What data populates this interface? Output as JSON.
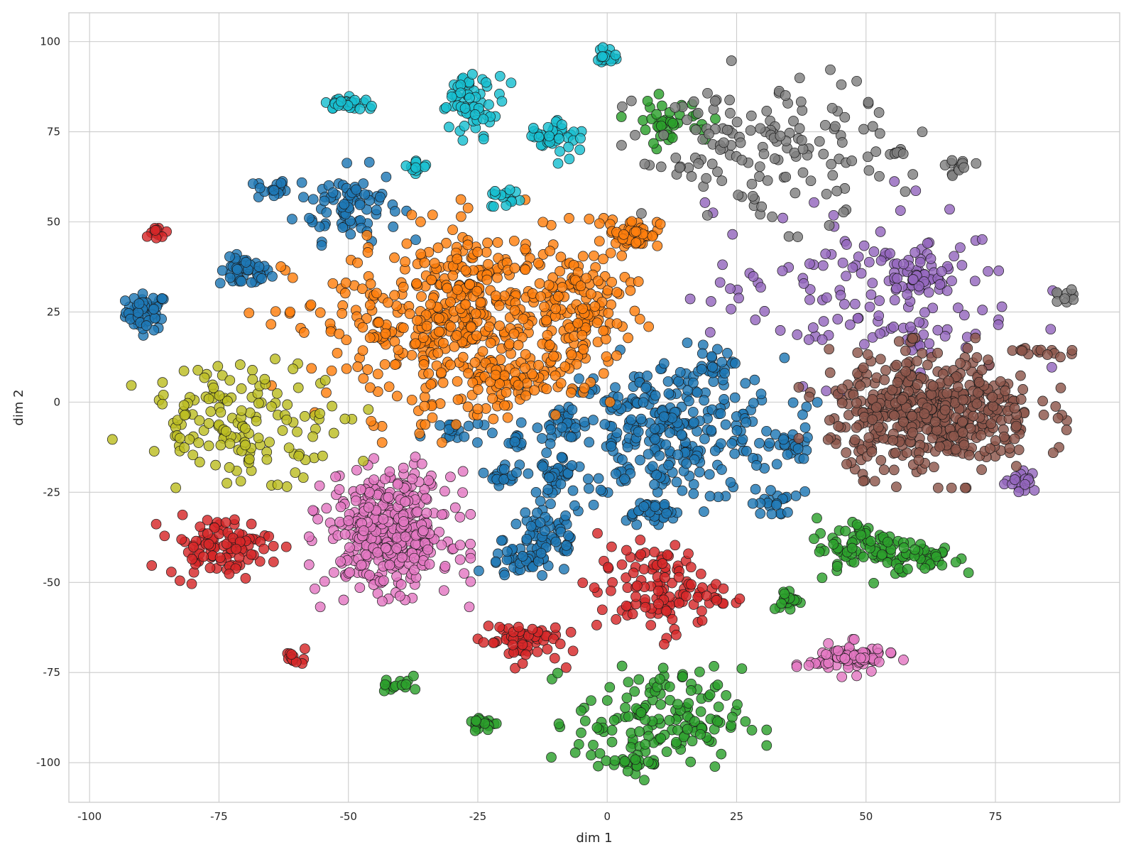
{
  "chart_data": {
    "type": "scatter",
    "title": "",
    "xlabel": "dim 1",
    "ylabel": "dim 2",
    "xlim": [
      -104,
      99
    ],
    "ylim": [
      -111,
      108
    ],
    "xticks": [
      -100,
      -75,
      -50,
      -25,
      0,
      25,
      50,
      75
    ],
    "xtick_labels": [
      "-100",
      "-75",
      "-50",
      "-25",
      "0",
      "25",
      "50",
      "75"
    ],
    "yticks": [
      -100,
      -75,
      -50,
      -25,
      0,
      25,
      50,
      75,
      100
    ],
    "ytick_labels": [
      "-100",
      "-75",
      "-50",
      "-25",
      "0",
      "25",
      "50",
      "75",
      "100"
    ],
    "grid": true,
    "legend": "none",
    "colors": {
      "blue": "#1f77b4",
      "orange": "#ff7f0e",
      "green": "#2ca02c",
      "red": "#d62728",
      "purple": "#9467bd",
      "brown": "#8c564b",
      "pink": "#e377c2",
      "gray": "#7f7f7f",
      "olive": "#bcbd22",
      "cyan": "#17becf"
    },
    "clusters": [
      {
        "color": "blue",
        "x": -89,
        "y": 25,
        "sx": 2.0,
        "sy": 2.5,
        "n": 60
      },
      {
        "color": "blue",
        "x": -70,
        "y": 36,
        "sx": 2.5,
        "sy": 2.0,
        "n": 50
      },
      {
        "color": "blue",
        "x": -65,
        "y": 59,
        "sx": 1.5,
        "sy": 1.5,
        "n": 20
      },
      {
        "color": "blue",
        "x": -50,
        "y": 55,
        "sx": 5.0,
        "sy": 5.0,
        "n": 80
      },
      {
        "color": "blue",
        "x": -30,
        "y": -8,
        "sx": 3.0,
        "sy": 2.0,
        "n": 20
      },
      {
        "color": "blue",
        "x": -20,
        "y": -20,
        "sx": 1.5,
        "sy": 1.5,
        "n": 20
      },
      {
        "color": "blue",
        "x": -17,
        "y": -11,
        "sx": 1.0,
        "sy": 1.0,
        "n": 10
      },
      {
        "color": "blue",
        "x": -10,
        "y": -20,
        "sx": 1.5,
        "sy": 2.0,
        "n": 30
      },
      {
        "color": "blue",
        "x": -8,
        "y": -6,
        "sx": 2.0,
        "sy": 2.0,
        "n": 30
      },
      {
        "color": "blue",
        "x": -12,
        "y": -38,
        "sx": 4.0,
        "sy": 5.0,
        "n": 70
      },
      {
        "color": "blue",
        "x": -17,
        "y": -45,
        "sx": 3.0,
        "sy": 2.0,
        "n": 30
      },
      {
        "color": "blue",
        "x": 12,
        "y": -8,
        "sx": 11.0,
        "sy": 10.0,
        "n": 300
      },
      {
        "color": "blue",
        "x": 8,
        "y": -30,
        "sx": 3.0,
        "sy": 1.5,
        "n": 30
      },
      {
        "color": "blue",
        "x": 20,
        "y": 10,
        "sx": 2.0,
        "sy": 2.0,
        "n": 20
      },
      {
        "color": "blue",
        "x": 35,
        "y": -12,
        "sx": 2.0,
        "sy": 2.0,
        "n": 20
      },
      {
        "color": "blue",
        "x": 32,
        "y": -28,
        "sx": 2.0,
        "sy": 2.0,
        "n": 20
      },
      {
        "color": "orange",
        "x": -38,
        "y": 20,
        "sx": 12.0,
        "sy": 12.0,
        "n": 200
      },
      {
        "color": "orange",
        "x": -25,
        "y": 25,
        "sx": 8.0,
        "sy": 12.0,
        "n": 250
      },
      {
        "color": "orange",
        "x": -5,
        "y": 25,
        "sx": 5.0,
        "sy": 10.0,
        "n": 150
      },
      {
        "color": "orange",
        "x": 5,
        "y": 47,
        "sx": 2.5,
        "sy": 2.0,
        "n": 50
      },
      {
        "color": "orange",
        "x": -20,
        "y": 5,
        "sx": 6.0,
        "sy": 4.0,
        "n": 60
      },
      {
        "color": "green",
        "x": 10,
        "y": -88,
        "sx": 8.0,
        "sy": 7.0,
        "n": 150
      },
      {
        "color": "green",
        "x": 5,
        "y": -100,
        "sx": 2.0,
        "sy": 1.0,
        "n": 20
      },
      {
        "color": "green",
        "x": 50,
        "y": -40,
        "sx": 5.0,
        "sy": 4.0,
        "n": 80
      },
      {
        "color": "green",
        "x": 62,
        "y": -43,
        "sx": 3.0,
        "sy": 2.0,
        "n": 40
      },
      {
        "color": "green",
        "x": 35,
        "y": -55,
        "sx": 1.5,
        "sy": 1.5,
        "n": 20
      },
      {
        "color": "green",
        "x": -24,
        "y": -89,
        "sx": 1.5,
        "sy": 1.0,
        "n": 20
      },
      {
        "color": "green",
        "x": -41,
        "y": -78,
        "sx": 1.5,
        "sy": 2.0,
        "n": 15
      },
      {
        "color": "green",
        "x": 12,
        "y": 78,
        "sx": 4.0,
        "sy": 3.0,
        "n": 40
      },
      {
        "color": "red",
        "x": -75,
        "y": -40,
        "sx": 5.0,
        "sy": 4.0,
        "n": 100
      },
      {
        "color": "red",
        "x": -60,
        "y": -71,
        "sx": 1.0,
        "sy": 1.0,
        "n": 12
      },
      {
        "color": "red",
        "x": -87,
        "y": 47,
        "sx": 1.0,
        "sy": 1.0,
        "n": 12
      },
      {
        "color": "red",
        "x": 10,
        "y": -52,
        "sx": 6.0,
        "sy": 6.0,
        "n": 120
      },
      {
        "color": "red",
        "x": -17,
        "y": -66,
        "sx": 4.0,
        "sy": 3.0,
        "n": 60
      },
      {
        "color": "purple",
        "x": 50,
        "y": 30,
        "sx": 15.0,
        "sy": 12.0,
        "n": 150
      },
      {
        "color": "purple",
        "x": 60,
        "y": 35,
        "sx": 3.0,
        "sy": 3.0,
        "n": 40
      },
      {
        "color": "purple",
        "x": 80,
        "y": -22,
        "sx": 1.5,
        "sy": 1.5,
        "n": 20
      },
      {
        "color": "brown",
        "x": 63,
        "y": -3,
        "sx": 10.0,
        "sy": 8.0,
        "n": 500
      },
      {
        "color": "brown",
        "x": 83,
        "y": 14,
        "sx": 3.0,
        "sy": 1.0,
        "n": 15
      },
      {
        "color": "pink",
        "x": -42,
        "y": -36,
        "sx": 6.0,
        "sy": 8.0,
        "n": 400
      },
      {
        "color": "pink",
        "x": 47,
        "y": -71,
        "sx": 4.0,
        "sy": 2.0,
        "n": 80
      },
      {
        "color": "gray",
        "x": 30,
        "y": 70,
        "sx": 12.0,
        "sy": 10.0,
        "n": 150
      },
      {
        "color": "gray",
        "x": 68,
        "y": 65,
        "sx": 1.5,
        "sy": 1.0,
        "n": 12
      },
      {
        "color": "gray",
        "x": 89,
        "y": 29,
        "sx": 1.0,
        "sy": 1.0,
        "n": 10
      },
      {
        "color": "gray",
        "x": 56,
        "y": 69,
        "sx": 1.0,
        "sy": 0.5,
        "n": 8
      },
      {
        "color": "olive",
        "x": -70,
        "y": -5,
        "sx": 10.0,
        "sy": 8.0,
        "n": 150
      },
      {
        "color": "cyan",
        "x": -26,
        "y": 83,
        "sx": 3.0,
        "sy": 4.0,
        "n": 60
      },
      {
        "color": "cyan",
        "x": -50,
        "y": 83,
        "sx": 2.0,
        "sy": 1.0,
        "n": 30
      },
      {
        "color": "cyan",
        "x": 0,
        "y": 96,
        "sx": 1.0,
        "sy": 1.0,
        "n": 20
      },
      {
        "color": "cyan",
        "x": -10,
        "y": 74,
        "sx": 2.5,
        "sy": 3.0,
        "n": 40
      },
      {
        "color": "cyan",
        "x": -37,
        "y": 65,
        "sx": 1.5,
        "sy": 1.0,
        "n": 12
      },
      {
        "color": "cyan",
        "x": -20,
        "y": 56,
        "sx": 1.5,
        "sy": 1.5,
        "n": 15
      }
    ]
  }
}
